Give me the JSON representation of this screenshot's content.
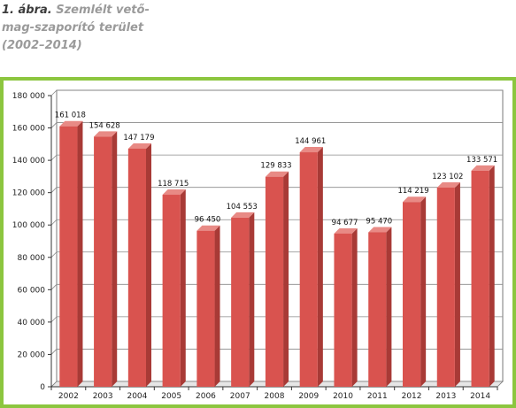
{
  "caption": {
    "label": "1. ábra.",
    "line1": "Szemlélt vető-",
    "line2": "mag-szaporító terület",
    "line3": "(2002–2014)"
  },
  "colors": {
    "frame": "#8cc63f",
    "bar_front": "#d9534f",
    "bar_side": "#a83a36",
    "bar_top": "#e88a85"
  },
  "chart_data": {
    "type": "bar",
    "title": "",
    "xlabel": "",
    "ylabel": "",
    "ylim": [
      0,
      180000
    ],
    "yticks": [
      0,
      20000,
      40000,
      60000,
      80000,
      100000,
      120000,
      140000,
      160000,
      180000
    ],
    "ytick_labels": [
      "0",
      "20 000",
      "40 000",
      "60 000",
      "80 000",
      "100 000",
      "120 000",
      "140 000",
      "160 000",
      "180 000"
    ],
    "grid": true,
    "categories": [
      "2002",
      "2003",
      "2004",
      "2005",
      "2006",
      "2007",
      "2008",
      "2009",
      "2010",
      "2011",
      "2012",
      "2013",
      "2014"
    ],
    "values": [
      161018,
      154628,
      147179,
      118715,
      96450,
      104553,
      129833,
      144961,
      94677,
      95470,
      114219,
      123102,
      133571
    ],
    "value_labels": [
      "161 018",
      "154 628",
      "147 179",
      "118 715",
      "96 450",
      "104 553",
      "129 833",
      "144 961",
      "94 677",
      "95 470",
      "114 219",
      "123 102",
      "133 571"
    ]
  }
}
